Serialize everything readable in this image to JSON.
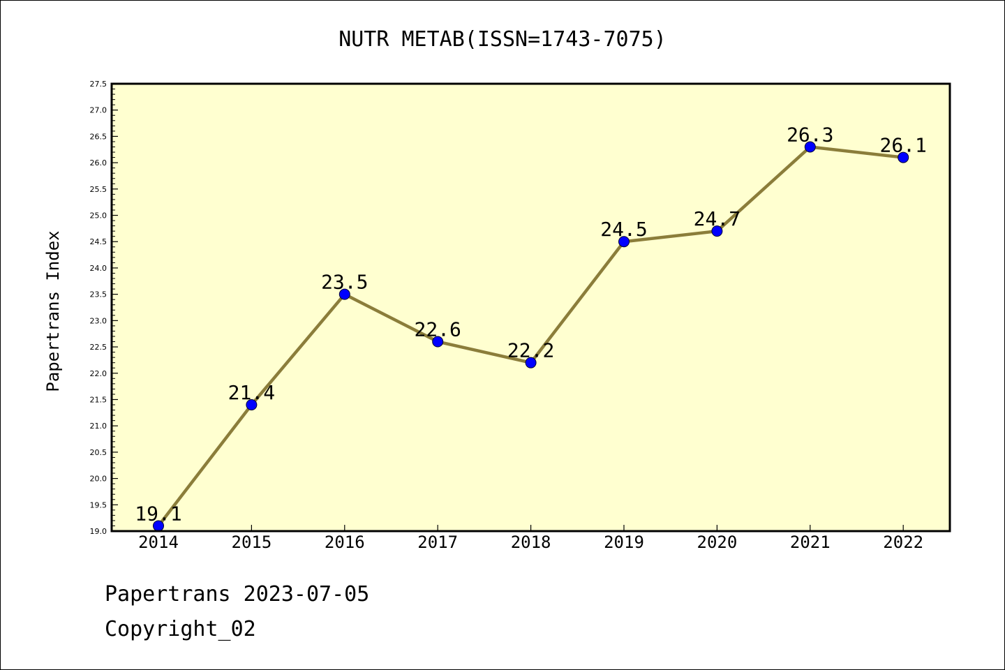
{
  "chart_data": {
    "type": "line",
    "title": "NUTR METAB(ISSN=1743-7075)",
    "xlabel": "",
    "ylabel": "Papertrans Index",
    "categories": [
      "2014",
      "2015",
      "2016",
      "2017",
      "2018",
      "2019",
      "2020",
      "2021",
      "2022"
    ],
    "series": [
      {
        "values": [
          19.1,
          21.4,
          23.5,
          22.6,
          22.2,
          24.5,
          24.7,
          26.3,
          26.1
        ],
        "labels": [
          "19.1",
          "21.4",
          "23.5",
          "22.6",
          "22.2",
          "24.5",
          "24.7",
          "26.3",
          "26.1"
        ]
      }
    ],
    "ylim": [
      19.0,
      27.5
    ],
    "yticks": [
      "19.0",
      "19.5",
      "20.0",
      "20.5",
      "21.0",
      "21.5",
      "22.0",
      "22.5",
      "23.0",
      "23.5",
      "24.0",
      "24.5",
      "25.0",
      "25.5",
      "26.0",
      "26.5",
      "27.0",
      "27.5"
    ],
    "grid": false,
    "legend": "none",
    "colors": {
      "plot_background": "#ffffd0",
      "line": "#8b7d3a",
      "marker": "#0000ff"
    }
  },
  "footer": {
    "line1": "Papertrans 2023-07-05",
    "line2": "Copyright_02"
  }
}
